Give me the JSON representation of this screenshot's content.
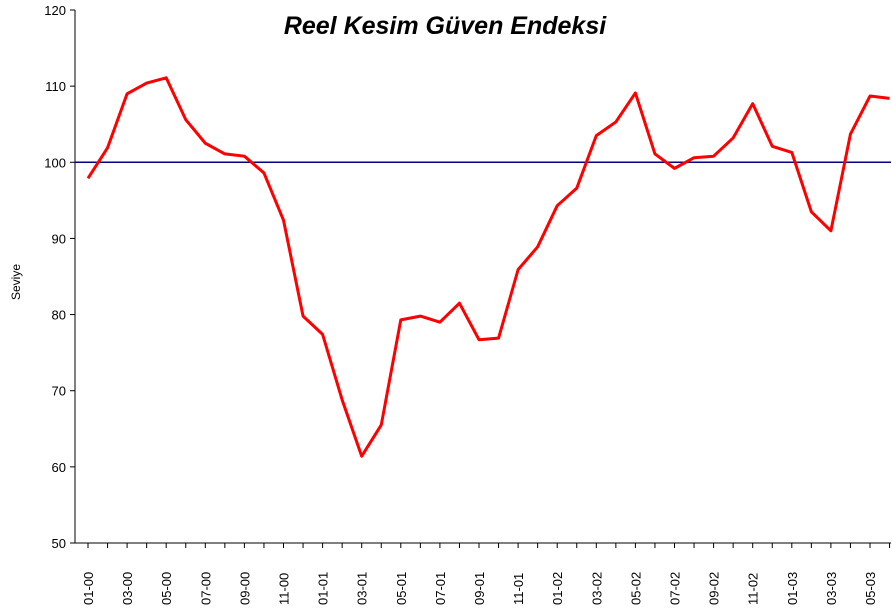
{
  "chart_data": {
    "type": "line",
    "title": "Reel Kesim Güven Endeksi",
    "y_label": "Seviye",
    "categories": [
      "01-00",
      null,
      "03-00",
      null,
      "05-00",
      null,
      "07-00",
      null,
      "09-00",
      null,
      "11-00",
      null,
      "01-01",
      null,
      "03-01",
      null,
      "05-01",
      null,
      "07-01",
      null,
      "09-01",
      null,
      "11-01",
      null,
      "01-02",
      null,
      "03-02",
      null,
      "05-02",
      null,
      "07-02",
      null,
      "09-02",
      null,
      "11-02",
      null,
      "01-03",
      null,
      "03-03",
      null,
      "05-03",
      null
    ],
    "series": [
      {
        "name": "Reel Kesim Güven Endeksi",
        "color": "#ff0000",
        "values": [
          97.9,
          101.9,
          109.0,
          110.4,
          111.1,
          105.6,
          102.5,
          101.1,
          100.8,
          98.6,
          92.4,
          79.8,
          77.4,
          68.8,
          61.4,
          65.5,
          79.3,
          79.8,
          79.0,
          81.5,
          76.7,
          76.9,
          85.9,
          88.9,
          94.3,
          96.6,
          103.5,
          105.3,
          109.1,
          101.1,
          99.2,
          100.6,
          100.8,
          103.2,
          107.7,
          102.1,
          101.3,
          93.5,
          91.0,
          103.7,
          108.7,
          108.4
        ]
      }
    ],
    "reference_line": {
      "value": 100,
      "color": "#000080"
    },
    "ylim": [
      50,
      120
    ],
    "yticks": [
      50,
      60,
      70,
      80,
      90,
      100,
      110,
      120
    ],
    "grid": false
  }
}
